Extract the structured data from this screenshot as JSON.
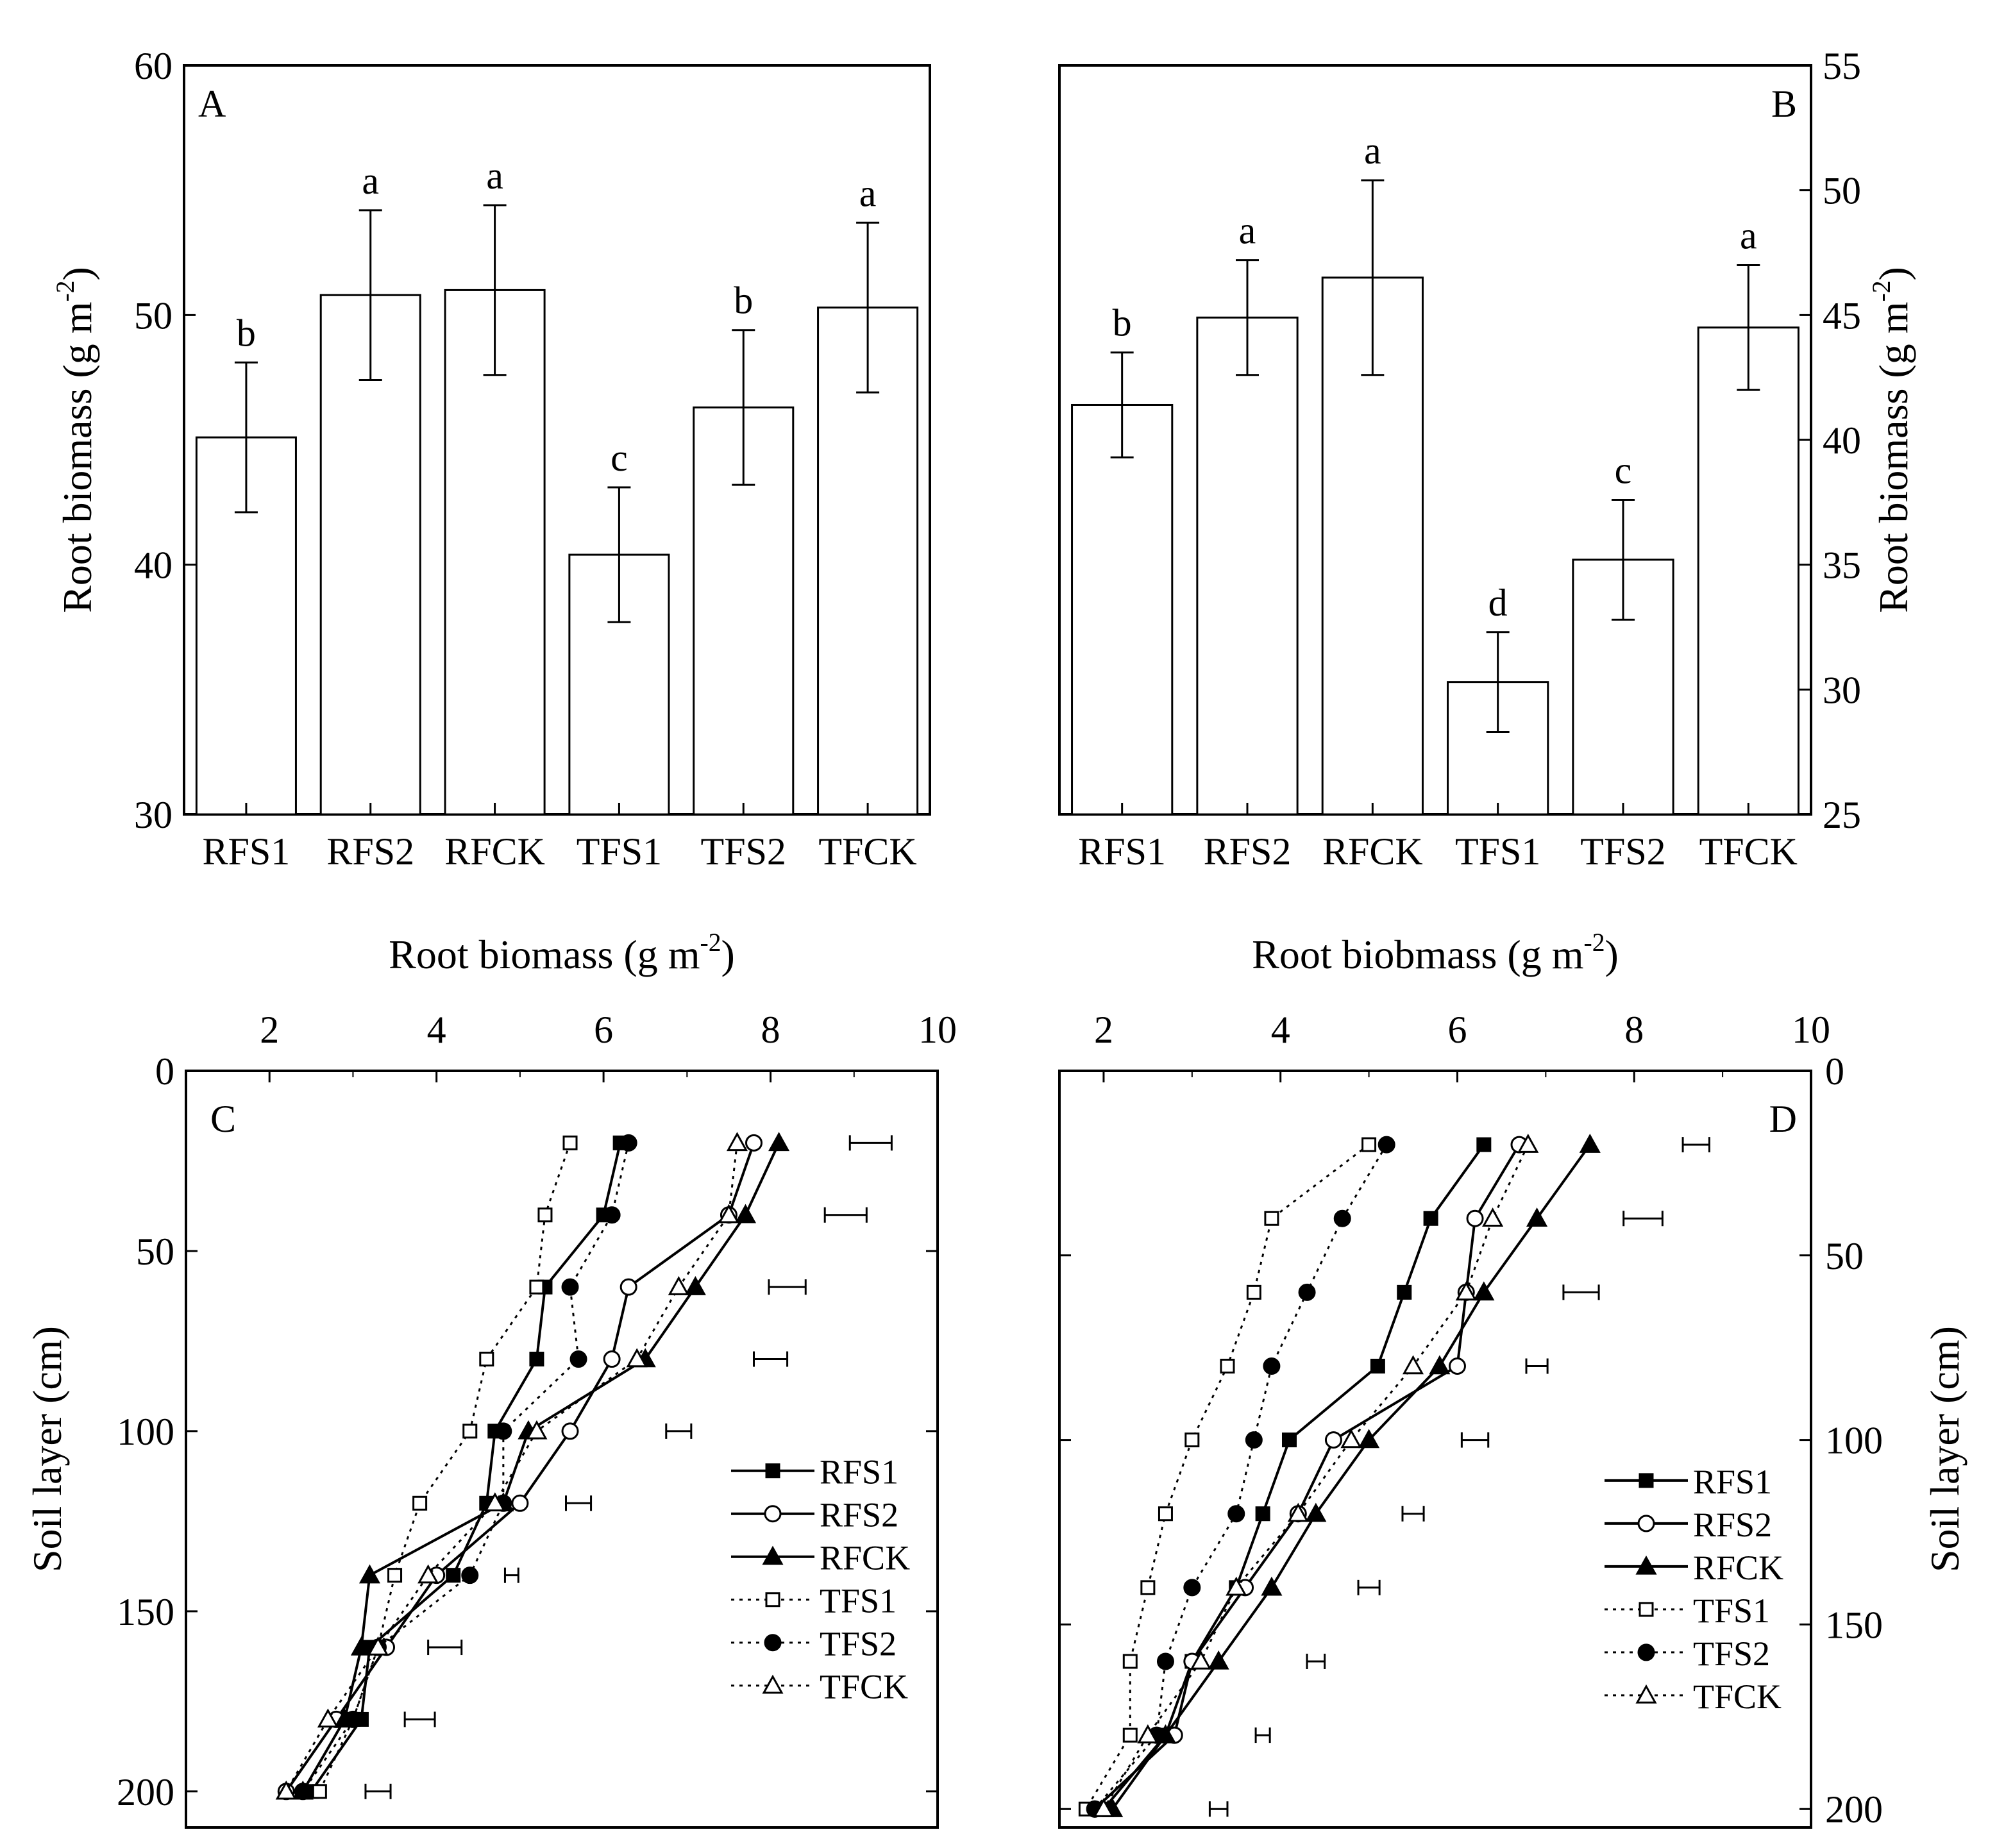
{
  "chart_data": [
    {
      "id": "A",
      "panel_label": "A",
      "type": "bar",
      "categories": [
        "RFS1",
        "RFS2",
        "RFCK",
        "TFS1",
        "TFS2",
        "TFCK"
      ],
      "values": [
        45.1,
        50.8,
        51.0,
        40.4,
        46.3,
        50.3
      ],
      "errors": [
        3.0,
        3.4,
        3.4,
        2.7,
        3.1,
        3.4
      ],
      "letters": [
        "b",
        "a",
        "a",
        "c",
        "b",
        "a"
      ],
      "ylabel": "Root biomass (g m-2)",
      "ylim": [
        30,
        60
      ],
      "yticks": [
        "30",
        "40",
        "50",
        "60"
      ],
      "yaxis_side": "left"
    },
    {
      "id": "B",
      "panel_label": "B",
      "type": "bar",
      "categories": [
        "RFS1",
        "RFS2",
        "RFCK",
        "TFS1",
        "TFS2",
        "TFCK"
      ],
      "values": [
        41.4,
        44.9,
        46.5,
        30.3,
        35.2,
        44.5
      ],
      "errors": [
        2.1,
        2.3,
        3.9,
        2.0,
        2.4,
        2.5
      ],
      "letters": [
        "b",
        "a",
        "a",
        "d",
        "c",
        "a"
      ],
      "ylabel": "Root biomass (g m-2)",
      "ylim": [
        25,
        55
      ],
      "yticks": [
        "25",
        "30",
        "35",
        "40",
        "45",
        "50",
        "55"
      ],
      "yaxis_side": "right"
    },
    {
      "id": "C",
      "panel_label": "C",
      "type": "line",
      "top_title": "Root biomass (g m-2)",
      "ylabel": "Soil layer (cm)",
      "xlim": [
        1,
        10
      ],
      "ylim": [
        0,
        210
      ],
      "xticks": [
        "2",
        "4",
        "6",
        "8",
        "10"
      ],
      "yticks": [
        "0",
        "50",
        "100",
        "150",
        "200"
      ],
      "depths": [
        20,
        40,
        60,
        80,
        100,
        120,
        140,
        160,
        180,
        200
      ],
      "series": [
        {
          "name": "RFS1",
          "style": "solid",
          "marker": "square-filled",
          "values": [
            6.2,
            6.0,
            5.3,
            5.2,
            4.7,
            4.6,
            4.2,
            3.2,
            3.1,
            2.5
          ]
        },
        {
          "name": "RFS2",
          "style": "solid",
          "marker": "circle-open",
          "values": [
            7.8,
            7.5,
            6.3,
            6.1,
            5.6,
            5.0,
            4.0,
            3.4,
            2.8,
            2.2
          ]
        },
        {
          "name": "RFCK",
          "style": "solid",
          "marker": "triangle-filled",
          "values": [
            8.1,
            7.7,
            7.1,
            6.5,
            5.1,
            4.8,
            3.2,
            3.1,
            2.9,
            2.4
          ]
        },
        {
          "name": "TFS1",
          "style": "dotted",
          "marker": "square-open",
          "values": [
            5.6,
            5.3,
            5.2,
            4.6,
            4.4,
            3.8,
            3.5,
            3.3,
            3.0,
            2.6
          ]
        },
        {
          "name": "TFS2",
          "style": "dotted",
          "marker": "circle-filled",
          "values": [
            6.3,
            6.1,
            5.6,
            5.7,
            4.8,
            4.8,
            4.4,
            3.3,
            3.0,
            2.4
          ]
        },
        {
          "name": "TFCK",
          "style": "dotted",
          "marker": "triangle-open",
          "values": [
            7.6,
            7.5,
            6.9,
            6.4,
            5.2,
            4.7,
            3.9,
            3.3,
            2.7,
            2.2
          ]
        }
      ],
      "error_bars": [
        {
          "depth": 20,
          "center": 9.2,
          "half": 0.25
        },
        {
          "depth": 40,
          "center": 8.9,
          "half": 0.25
        },
        {
          "depth": 60,
          "center": 8.2,
          "half": 0.22
        },
        {
          "depth": 80,
          "center": 8.0,
          "half": 0.2
        },
        {
          "depth": 100,
          "center": 6.9,
          "half": 0.15
        },
        {
          "depth": 120,
          "center": 5.7,
          "half": 0.15
        },
        {
          "depth": 140,
          "center": 4.9,
          "half": 0.08
        },
        {
          "depth": 160,
          "center": 4.1,
          "half": 0.2
        },
        {
          "depth": 180,
          "center": 3.8,
          "half": 0.18
        },
        {
          "depth": 200,
          "center": 3.3,
          "half": 0.15
        }
      ]
    },
    {
      "id": "D",
      "panel_label": "D",
      "type": "line",
      "top_title": "Root biobmass (g m-2)",
      "ylabel": "Soil layer (cm)",
      "xlim": [
        1.5,
        10
      ],
      "ylim": [
        0,
        205
      ],
      "xticks": [
        "2",
        "4",
        "6",
        "8",
        "10"
      ],
      "yticks": [
        "0",
        "50",
        "100",
        "150",
        "200"
      ],
      "depths": [
        20,
        40,
        60,
        80,
        100,
        120,
        140,
        160,
        180,
        200
      ],
      "series": [
        {
          "name": "RFS1",
          "style": "solid",
          "marker": "square-filled",
          "values": [
            6.3,
            5.7,
            5.4,
            5.1,
            4.1,
            3.8,
            3.5,
            3.0,
            2.7,
            2.0
          ]
        },
        {
          "name": "RFS2",
          "style": "solid",
          "marker": "circle-open",
          "values": [
            6.7,
            6.2,
            6.1,
            6.0,
            4.6,
            4.2,
            3.6,
            3.0,
            2.8,
            1.9
          ]
        },
        {
          "name": "RFCK",
          "style": "solid",
          "marker": "triangle-filled",
          "values": [
            7.5,
            6.9,
            6.3,
            5.8,
            5.0,
            4.4,
            3.9,
            3.3,
            2.7,
            2.1
          ]
        },
        {
          "name": "TFS1",
          "style": "dotted",
          "marker": "square-open",
          "values": [
            5.0,
            3.9,
            3.7,
            3.4,
            3.0,
            2.7,
            2.5,
            2.3,
            2.3,
            1.8
          ]
        },
        {
          "name": "TFS2",
          "style": "dotted",
          "marker": "circle-filled",
          "values": [
            5.2,
            4.7,
            4.3,
            3.9,
            3.7,
            3.5,
            3.0,
            2.7,
            2.6,
            1.9
          ]
        },
        {
          "name": "TFCK",
          "style": "dotted",
          "marker": "triangle-open",
          "values": [
            6.8,
            6.4,
            6.1,
            5.5,
            4.8,
            4.2,
            3.5,
            3.1,
            2.5,
            2.0
          ]
        }
      ],
      "error_bars": [
        {
          "depth": 20,
          "center": 8.7,
          "half": 0.15
        },
        {
          "depth": 40,
          "center": 8.1,
          "half": 0.22
        },
        {
          "depth": 60,
          "center": 7.4,
          "half": 0.2
        },
        {
          "depth": 80,
          "center": 6.9,
          "half": 0.12
        },
        {
          "depth": 100,
          "center": 6.2,
          "half": 0.15
        },
        {
          "depth": 120,
          "center": 5.5,
          "half": 0.12
        },
        {
          "depth": 140,
          "center": 5.0,
          "half": 0.12
        },
        {
          "depth": 160,
          "center": 4.4,
          "half": 0.1
        },
        {
          "depth": 180,
          "center": 3.8,
          "half": 0.08
        },
        {
          "depth": 200,
          "center": 3.3,
          "half": 0.1
        }
      ]
    }
  ]
}
